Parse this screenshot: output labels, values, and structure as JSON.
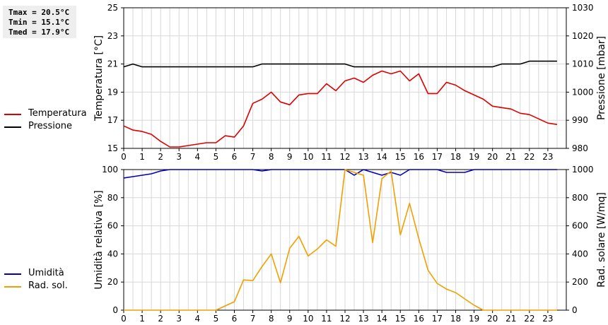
{
  "stats": {
    "tmax": "Tmax = 20.5°C",
    "tmin": "Tmin = 15.1°C",
    "tmed": "Tmed = 17.9°C"
  },
  "legend_top": [
    {
      "label": "Temperatura",
      "color": "#dd0000"
    },
    {
      "label": "Pressione",
      "color": "#000000"
    }
  ],
  "legend_bottom": [
    {
      "label": "Umidità",
      "color": "#0000bb"
    },
    {
      "label": "Rad. sol.",
      "color": "#f0a000"
    }
  ],
  "chart_data": [
    {
      "type": "line",
      "ylabel": "Temperatura [°C]",
      "ylabel_right": "Pressione [mbar]",
      "ylim": [
        15,
        25
      ],
      "ylim_right": [
        980,
        1030
      ],
      "yticks": [
        "15",
        "17",
        "19",
        "21",
        "23",
        "25"
      ],
      "yticks_right": [
        "980",
        "990",
        "1000",
        "1010",
        "1020",
        "1030"
      ],
      "xlim": [
        0,
        24
      ],
      "xticks": [
        "0",
        "1",
        "2",
        "3",
        "4",
        "5",
        "6",
        "7",
        "8",
        "9",
        "10",
        "11",
        "12",
        "13",
        "14",
        "15",
        "16",
        "17",
        "18",
        "19",
        "20",
        "21",
        "22",
        "23"
      ],
      "grid": true,
      "series": [
        {
          "name": "Temperatura",
          "axis": "left",
          "color": "#dd0000",
          "x": [
            0,
            0.5,
            1,
            1.5,
            2,
            2.5,
            3,
            3.5,
            4,
            4.5,
            5,
            5.5,
            6,
            6.5,
            7,
            7.5,
            8,
            8.5,
            9,
            9.5,
            10,
            10.5,
            11,
            11.5,
            12,
            12.5,
            13,
            13.5,
            14,
            14.5,
            15,
            15.5,
            16,
            16.5,
            17,
            17.5,
            18,
            18.5,
            19,
            19.5,
            20,
            20.5,
            21,
            21.5,
            22,
            22.5,
            23,
            23.5
          ],
          "values": [
            16.6,
            16.3,
            16.2,
            16.0,
            15.5,
            15.1,
            15.1,
            15.2,
            15.3,
            15.4,
            15.4,
            15.9,
            15.8,
            16.6,
            18.2,
            18.5,
            19.0,
            18.3,
            18.1,
            18.8,
            18.9,
            18.9,
            19.6,
            19.1,
            19.8,
            20.0,
            19.7,
            20.2,
            20.5,
            20.3,
            20.5,
            19.8,
            20.3,
            18.9,
            18.9,
            19.7,
            19.5,
            19.1,
            18.8,
            18.5,
            18.0,
            17.9,
            17.8,
            17.5,
            17.4,
            17.1,
            16.8,
            16.7
          ]
        },
        {
          "name": "Pressione",
          "axis": "right",
          "color": "#000000",
          "x": [
            0,
            0.5,
            1,
            1.5,
            2,
            2.5,
            3,
            3.5,
            4,
            4.5,
            5,
            5.5,
            6,
            6.5,
            7,
            7.5,
            8,
            8.5,
            9,
            9.5,
            10,
            10.5,
            11,
            11.5,
            12,
            12.5,
            13,
            13.5,
            14,
            14.5,
            15,
            15.5,
            16,
            16.5,
            17,
            17.5,
            18,
            18.5,
            19,
            19.5,
            20,
            20.5,
            21,
            21.5,
            22,
            22.5,
            23,
            23.5
          ],
          "values": [
            1009,
            1010,
            1009,
            1009,
            1009,
            1009,
            1009,
            1009,
            1009,
            1009,
            1009,
            1009,
            1009,
            1009,
            1009,
            1010,
            1010,
            1010,
            1010,
            1010,
            1010,
            1010,
            1010,
            1010,
            1010,
            1009,
            1009,
            1009,
            1009,
            1009,
            1009,
            1009,
            1009,
            1009,
            1009,
            1009,
            1009,
            1009,
            1009,
            1009,
            1009,
            1010,
            1010,
            1010,
            1011,
            1011,
            1011,
            1011
          ]
        }
      ]
    },
    {
      "type": "line",
      "ylabel": "Umidità relativa [%]",
      "ylabel_right": "Rad. solare [W/mq]",
      "ylim": [
        0,
        100
      ],
      "ylim_right": [
        0,
        1000
      ],
      "yticks": [
        "0",
        "20",
        "40",
        "60",
        "80",
        "100"
      ],
      "yticks_right": [
        "0",
        "200",
        "400",
        "600",
        "800",
        "1000"
      ],
      "xlim": [
        0,
        24
      ],
      "xticks": [
        "0",
        "1",
        "2",
        "3",
        "4",
        "5",
        "6",
        "7",
        "8",
        "9",
        "10",
        "11",
        "12",
        "13",
        "14",
        "15",
        "16",
        "17",
        "18",
        "19",
        "20",
        "21",
        "22",
        "23"
      ],
      "grid": true,
      "series": [
        {
          "name": "Umidità",
          "axis": "left",
          "color": "#0000bb",
          "x": [
            0,
            0.5,
            1,
            1.5,
            2,
            2.5,
            3,
            3.5,
            4,
            4.5,
            5,
            5.5,
            6,
            6.5,
            7,
            7.5,
            8,
            8.5,
            9,
            9.5,
            10,
            10.5,
            11,
            11.5,
            12,
            12.5,
            13,
            13.5,
            14,
            14.5,
            15,
            15.5,
            16,
            16.5,
            17,
            17.5,
            18,
            18.5,
            19,
            19.5,
            20,
            20.5,
            21,
            21.5,
            22,
            22.5,
            23,
            23.5
          ],
          "values": [
            94,
            95,
            96,
            97,
            99,
            100,
            100,
            100,
            100,
            100,
            100,
            100,
            100,
            100,
            100,
            99,
            100,
            100,
            100,
            100,
            100,
            100,
            100,
            100,
            100,
            96,
            100,
            98,
            96,
            98,
            96,
            100,
            100,
            100,
            100,
            98,
            98,
            98,
            100,
            100,
            100,
            100,
            100,
            100,
            100,
            100,
            100,
            100
          ]
        },
        {
          "name": "Rad. sol.",
          "axis": "right",
          "color": "#f0a000",
          "x": [
            0,
            0.5,
            1,
            1.5,
            2,
            2.5,
            3,
            3.5,
            4,
            4.5,
            5,
            5.5,
            6,
            6.5,
            7,
            7.5,
            8,
            8.5,
            9,
            9.5,
            10,
            10.5,
            11,
            11.5,
            12,
            12.5,
            13,
            13.5,
            14,
            14.5,
            15,
            15.5,
            16,
            16.5,
            17,
            17.5,
            18,
            18.5,
            19,
            19.5,
            20,
            20.5,
            21,
            21.5,
            22,
            22.5,
            23,
            23.5
          ],
          "values": [
            0,
            0,
            0,
            0,
            0,
            0,
            0,
            0,
            0,
            0,
            0,
            30,
            60,
            215,
            210,
            310,
            400,
            195,
            440,
            525,
            385,
            435,
            500,
            455,
            1000,
            980,
            960,
            480,
            935,
            990,
            535,
            760,
            510,
            285,
            190,
            150,
            125,
            80,
            35,
            0,
            0,
            0,
            0,
            0,
            0,
            0,
            0,
            0
          ]
        }
      ]
    }
  ]
}
